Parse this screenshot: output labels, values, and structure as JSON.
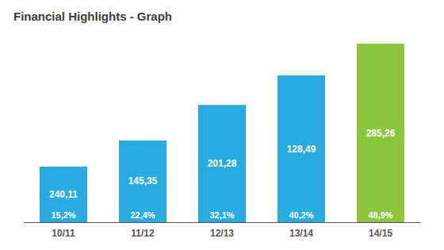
{
  "chart_data": {
    "type": "bar",
    "title": "Financial Highlights - Graph",
    "categories": [
      "10/11",
      "11/12",
      "12/13",
      "13/14",
      "14/15"
    ],
    "values": [
      15.2,
      22.4,
      32.1,
      40.2,
      48.9
    ],
    "value_labels": [
      "15,2%",
      "22,4%",
      "32,1%",
      "40,2%",
      "48,9%"
    ],
    "annotations": [
      "240,11",
      "145,35",
      "201,28",
      "128,49",
      "285,26"
    ],
    "colors": [
      "#29ABE2",
      "#29ABE2",
      "#29ABE2",
      "#29ABE2",
      "#8CC63F"
    ],
    "ylim": [
      0,
      50
    ],
    "data_labels": true,
    "tick_labels": "x",
    "grid": false
  }
}
